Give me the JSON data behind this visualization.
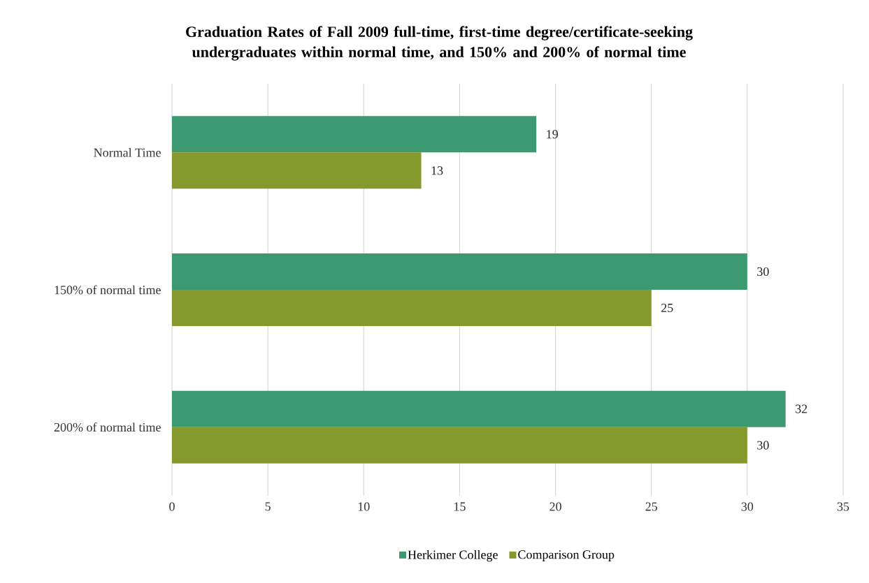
{
  "chart_data": {
    "type": "bar",
    "orientation": "horizontal",
    "title": "Graduation Rates of Fall 2009 full-time, first-time degree/certificate-seeking undergraduates within normal time, and 150% and 200% of normal time",
    "categories": [
      "Normal Time",
      "150% of normal time",
      "200% of normal time"
    ],
    "series": [
      {
        "name": "Herkimer College",
        "color": "#3d9970",
        "values": [
          19,
          30,
          32
        ]
      },
      {
        "name": "Comparison Group",
        "color": "#85992d",
        "values": [
          13,
          25,
          30
        ]
      }
    ],
    "xlim": [
      0,
      35
    ],
    "xticks": [
      0,
      5,
      10,
      15,
      20,
      25,
      30,
      35
    ],
    "grid": "x",
    "legend": "bottom",
    "data_labels": true
  }
}
